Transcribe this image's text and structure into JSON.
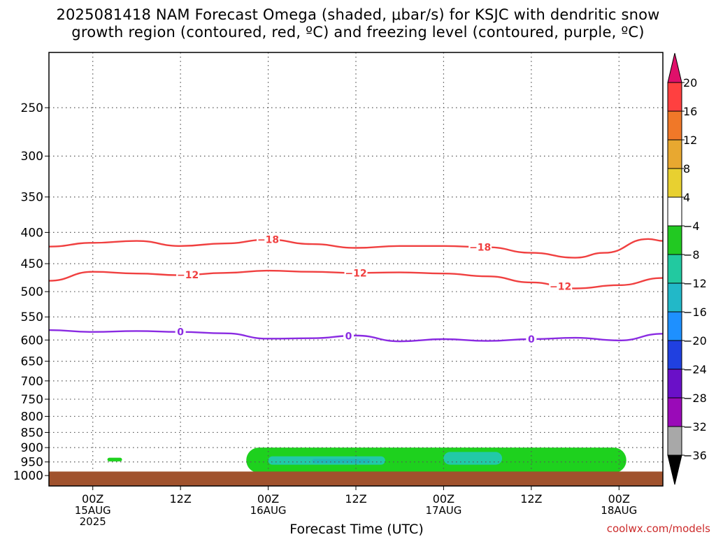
{
  "title": {
    "line1": "2025081418 NAM Forecast Omega (shaded, μbar/s) for KSJC with dendritic snow",
    "line2": "growth region (contoured, red, ºC) and freezing level (contoured, purple, ºC)"
  },
  "credit": "coolwx.com/models",
  "colors": {
    "ground": "#a0522d",
    "dgz_contour": "#f04040",
    "freezing_contour": "#8a2be2",
    "omega_light": "#1ed11e",
    "omega_teal": "#22c9a8",
    "omega_cyan": "#1fb7b7"
  },
  "chart_data": {
    "type": "time-height cross section",
    "title": "2025081418 NAM Forecast Omega (shaded, μbar/s) for KSJC with dendritic snow growth region (contoured, red, ºC) and freezing level (contoured, purple, ºC)",
    "xlabel": "Forecast Time (UTC)",
    "ylabel": "",
    "y_scale": "log-pressure, inverted",
    "y_ticks": [
      250,
      300,
      350,
      400,
      450,
      500,
      550,
      600,
      650,
      700,
      750,
      800,
      850,
      900,
      950,
      1000
    ],
    "x_ticks": [
      {
        "label": "00Z",
        "sub": "15AUG",
        "sub2": "2025",
        "hour": 0
      },
      {
        "label": "12Z",
        "sub": "",
        "sub2": "",
        "hour": 12
      },
      {
        "label": "00Z",
        "sub": "16AUG",
        "sub2": "",
        "hour": 24
      },
      {
        "label": "12Z",
        "sub": "",
        "sub2": "",
        "hour": 36
      },
      {
        "label": "00Z",
        "sub": "17AUG",
        "sub2": "",
        "hour": 48
      },
      {
        "label": "12Z",
        "sub": "",
        "sub2": "",
        "hour": 60
      },
      {
        "label": "00Z",
        "sub": "18AUG",
        "sub2": "",
        "hour": 72
      }
    ],
    "x_range_hours": [
      -6,
      78
    ],
    "grid": true,
    "colorbar": {
      "levels": [
        "20",
        "16",
        "12",
        "8",
        "4",
        "−4",
        "−8",
        "−12",
        "−16",
        "−20",
        "−24",
        "−28",
        "−32",
        "−36"
      ],
      "colors": [
        "#ff4040",
        "#f07828",
        "#e8a830",
        "#e8d030",
        "#ffffff",
        "#22c922",
        "#22c9a0",
        "#22b8c8",
        "#1e90ff",
        "#2040e0",
        "#6a10c8",
        "#9a0ab8",
        "#a8a8a8"
      ],
      "top_arrow": "#e0106a",
      "bottom_arrow": "#000000"
    },
    "contours": [
      {
        "name": "−18",
        "color": "#f04040",
        "labels": [
          {
            "text": "−18",
            "hour": 24
          },
          {
            "text": "−18",
            "hour": 53
          }
        ],
        "points": [
          [
            -6,
            422
          ],
          [
            0,
            416
          ],
          [
            6,
            413
          ],
          [
            12,
            421
          ],
          [
            18,
            417
          ],
          [
            24,
            411
          ],
          [
            30,
            418
          ],
          [
            36,
            424
          ],
          [
            42,
            421
          ],
          [
            48,
            421
          ],
          [
            54,
            423
          ],
          [
            60,
            432
          ],
          [
            66,
            440
          ],
          [
            70,
            432
          ],
          [
            76,
            410
          ],
          [
            78,
            413
          ]
        ]
      },
      {
        "name": "−12",
        "color": "#f04040",
        "labels": [
          {
            "text": "−12",
            "hour": 13
          },
          {
            "text": "−12",
            "hour": 36
          },
          {
            "text": "−12",
            "hour": 64
          }
        ],
        "points": [
          [
            -6,
            480
          ],
          [
            0,
            464
          ],
          [
            6,
            467
          ],
          [
            12,
            470
          ],
          [
            18,
            466
          ],
          [
            24,
            462
          ],
          [
            30,
            464
          ],
          [
            36,
            466
          ],
          [
            42,
            465
          ],
          [
            48,
            467
          ],
          [
            54,
            472
          ],
          [
            60,
            483
          ],
          [
            66,
            494
          ],
          [
            72,
            488
          ],
          [
            78,
            475
          ]
        ]
      },
      {
        "name": "0",
        "color": "#8a2be2",
        "labels": [
          {
            "text": "0",
            "hour": 12
          },
          {
            "text": "0",
            "hour": 35
          },
          {
            "text": "0",
            "hour": 60
          }
        ],
        "points": [
          [
            -6,
            578
          ],
          [
            0,
            582
          ],
          [
            6,
            580
          ],
          [
            12,
            582
          ],
          [
            18,
            585
          ],
          [
            24,
            597
          ],
          [
            30,
            596
          ],
          [
            36,
            590
          ],
          [
            42,
            603
          ],
          [
            48,
            598
          ],
          [
            54,
            602
          ],
          [
            60,
            598
          ],
          [
            66,
            595
          ],
          [
            72,
            601
          ],
          [
            78,
            586
          ]
        ]
      }
    ],
    "omega_regions": [
      {
        "level": "−4 to −8",
        "color": "#1ed11e",
        "hours": [
          2,
          4
        ],
        "pressure": [
          935,
          948
        ]
      },
      {
        "level": "−4 to −8",
        "color": "#1ed11e",
        "hours": [
          21,
          73
        ],
        "pressure": [
          900,
          990
        ]
      },
      {
        "level": "−8 to −12",
        "color": "#22c9a8",
        "hours": [
          24,
          40
        ],
        "pressure": [
          930,
          960
        ]
      },
      {
        "level": "−8 to −12",
        "color": "#22c9a8",
        "hours": [
          48,
          56
        ],
        "pressure": [
          915,
          960
        ]
      },
      {
        "level": "−12 to −16",
        "color": "#1fb7b7",
        "hours": [
          30,
          38
        ],
        "pressure": [
          940,
          955
        ]
      }
    ],
    "ground_below_hpa": 985
  }
}
